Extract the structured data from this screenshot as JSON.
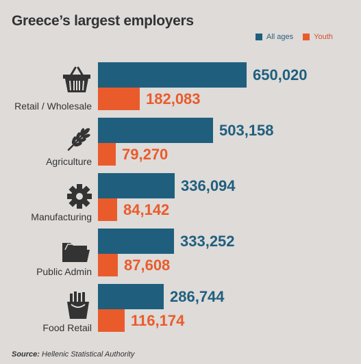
{
  "title": "Greece’s largest employers",
  "legend": {
    "all_label": "All ages",
    "youth_label": "Youth",
    "all_color": "#1f5f7d",
    "youth_color": "#ea5b2b"
  },
  "source": {
    "prefix": "Source:",
    "text": "Hellenic Statistical Authority"
  },
  "chart_data": {
    "type": "bar",
    "orientation": "horizontal",
    "title": "Greece’s largest employers",
    "categories": [
      "Retail / Wholesale",
      "Agriculture",
      "Manufacturing",
      "Public Admin",
      "Food Retail"
    ],
    "category_icons": [
      "basket-icon",
      "wheat-icon",
      "gear-icon",
      "folder-icon",
      "fries-icon"
    ],
    "series": [
      {
        "name": "All ages",
        "values": [
          650020,
          503158,
          336094,
          333252,
          286744
        ],
        "labels": [
          "650,020",
          "503,158",
          "336,094",
          "333,252",
          "286,744"
        ]
      },
      {
        "name": "Youth",
        "values": [
          182083,
          79270,
          84142,
          87608,
          116174
        ],
        "labels": [
          "182,083",
          "79,270",
          "84,142",
          "87,608",
          "116,174"
        ]
      }
    ],
    "legend_position": "top-right",
    "grid": false
  }
}
